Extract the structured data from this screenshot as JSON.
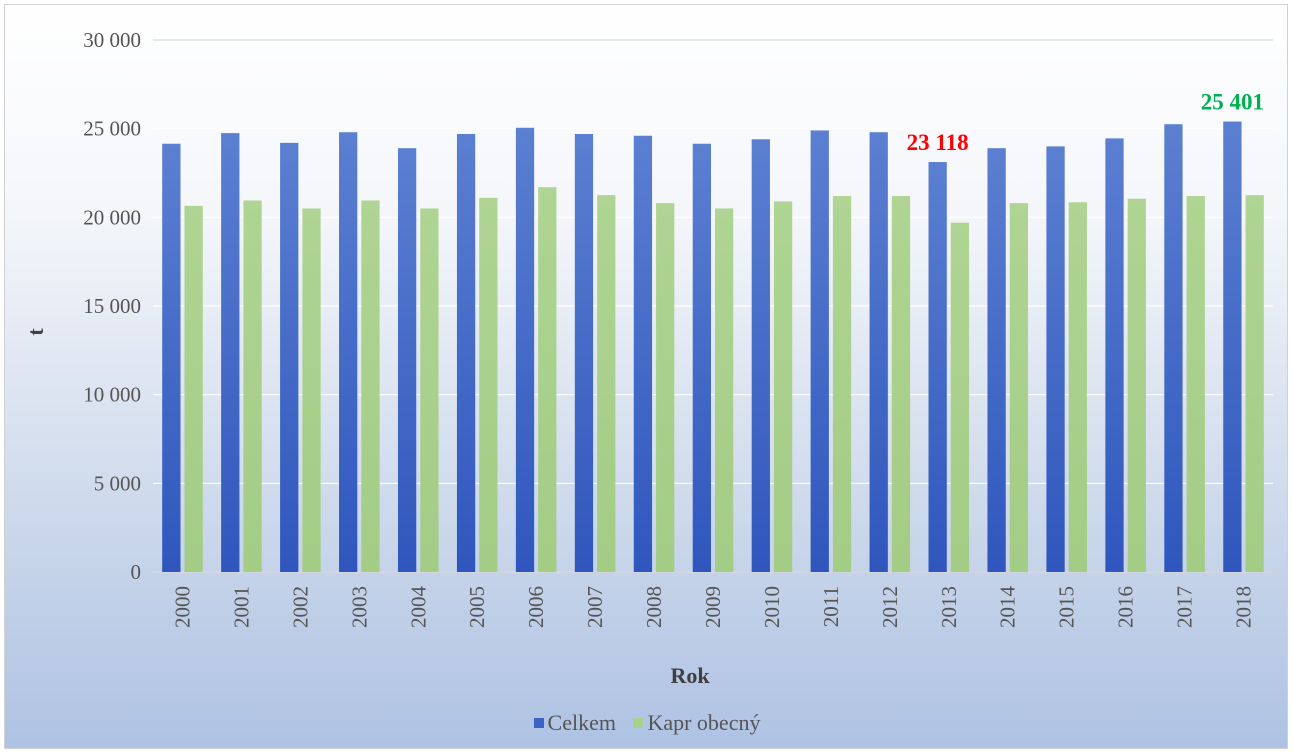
{
  "chart_data": {
    "type": "bar",
    "categories": [
      "2000",
      "2001",
      "2002",
      "2003",
      "2004",
      "2005",
      "2006",
      "2007",
      "2008",
      "2009",
      "2010",
      "2011",
      "2012",
      "2013",
      "2014",
      "2015",
      "2016",
      "2017",
      "2018"
    ],
    "series": [
      {
        "name": "Celkem",
        "color": "#3a63c6",
        "values": [
          24150,
          24750,
          24200,
          24800,
          23900,
          24700,
          25050,
          24700,
          24600,
          24150,
          24400,
          24900,
          24800,
          23118,
          23900,
          24000,
          24450,
          25250,
          25401
        ]
      },
      {
        "name": "Kapr obecný",
        "color": "#a9d18e",
        "values": [
          20650,
          20950,
          20500,
          20950,
          20500,
          21100,
          21700,
          21250,
          20800,
          20500,
          20900,
          21200,
          21200,
          19700,
          20800,
          20850,
          21050,
          21200,
          21250
        ]
      }
    ],
    "xlabel": "Rok",
    "ylabel": "t",
    "ylim": [
      0,
      30000
    ],
    "yticks": [
      "0",
      "5 000",
      "10 000",
      "15 000",
      "20 000",
      "25 000",
      "30 000"
    ],
    "grid": true,
    "legend_position": "bottom",
    "annotations": [
      {
        "text": "23 118",
        "category": "2013",
        "series": "Celkem",
        "color": "#ff0000"
      },
      {
        "text": "25 401",
        "category": "2018",
        "series": "Celkem",
        "color": "#00b050"
      }
    ]
  }
}
